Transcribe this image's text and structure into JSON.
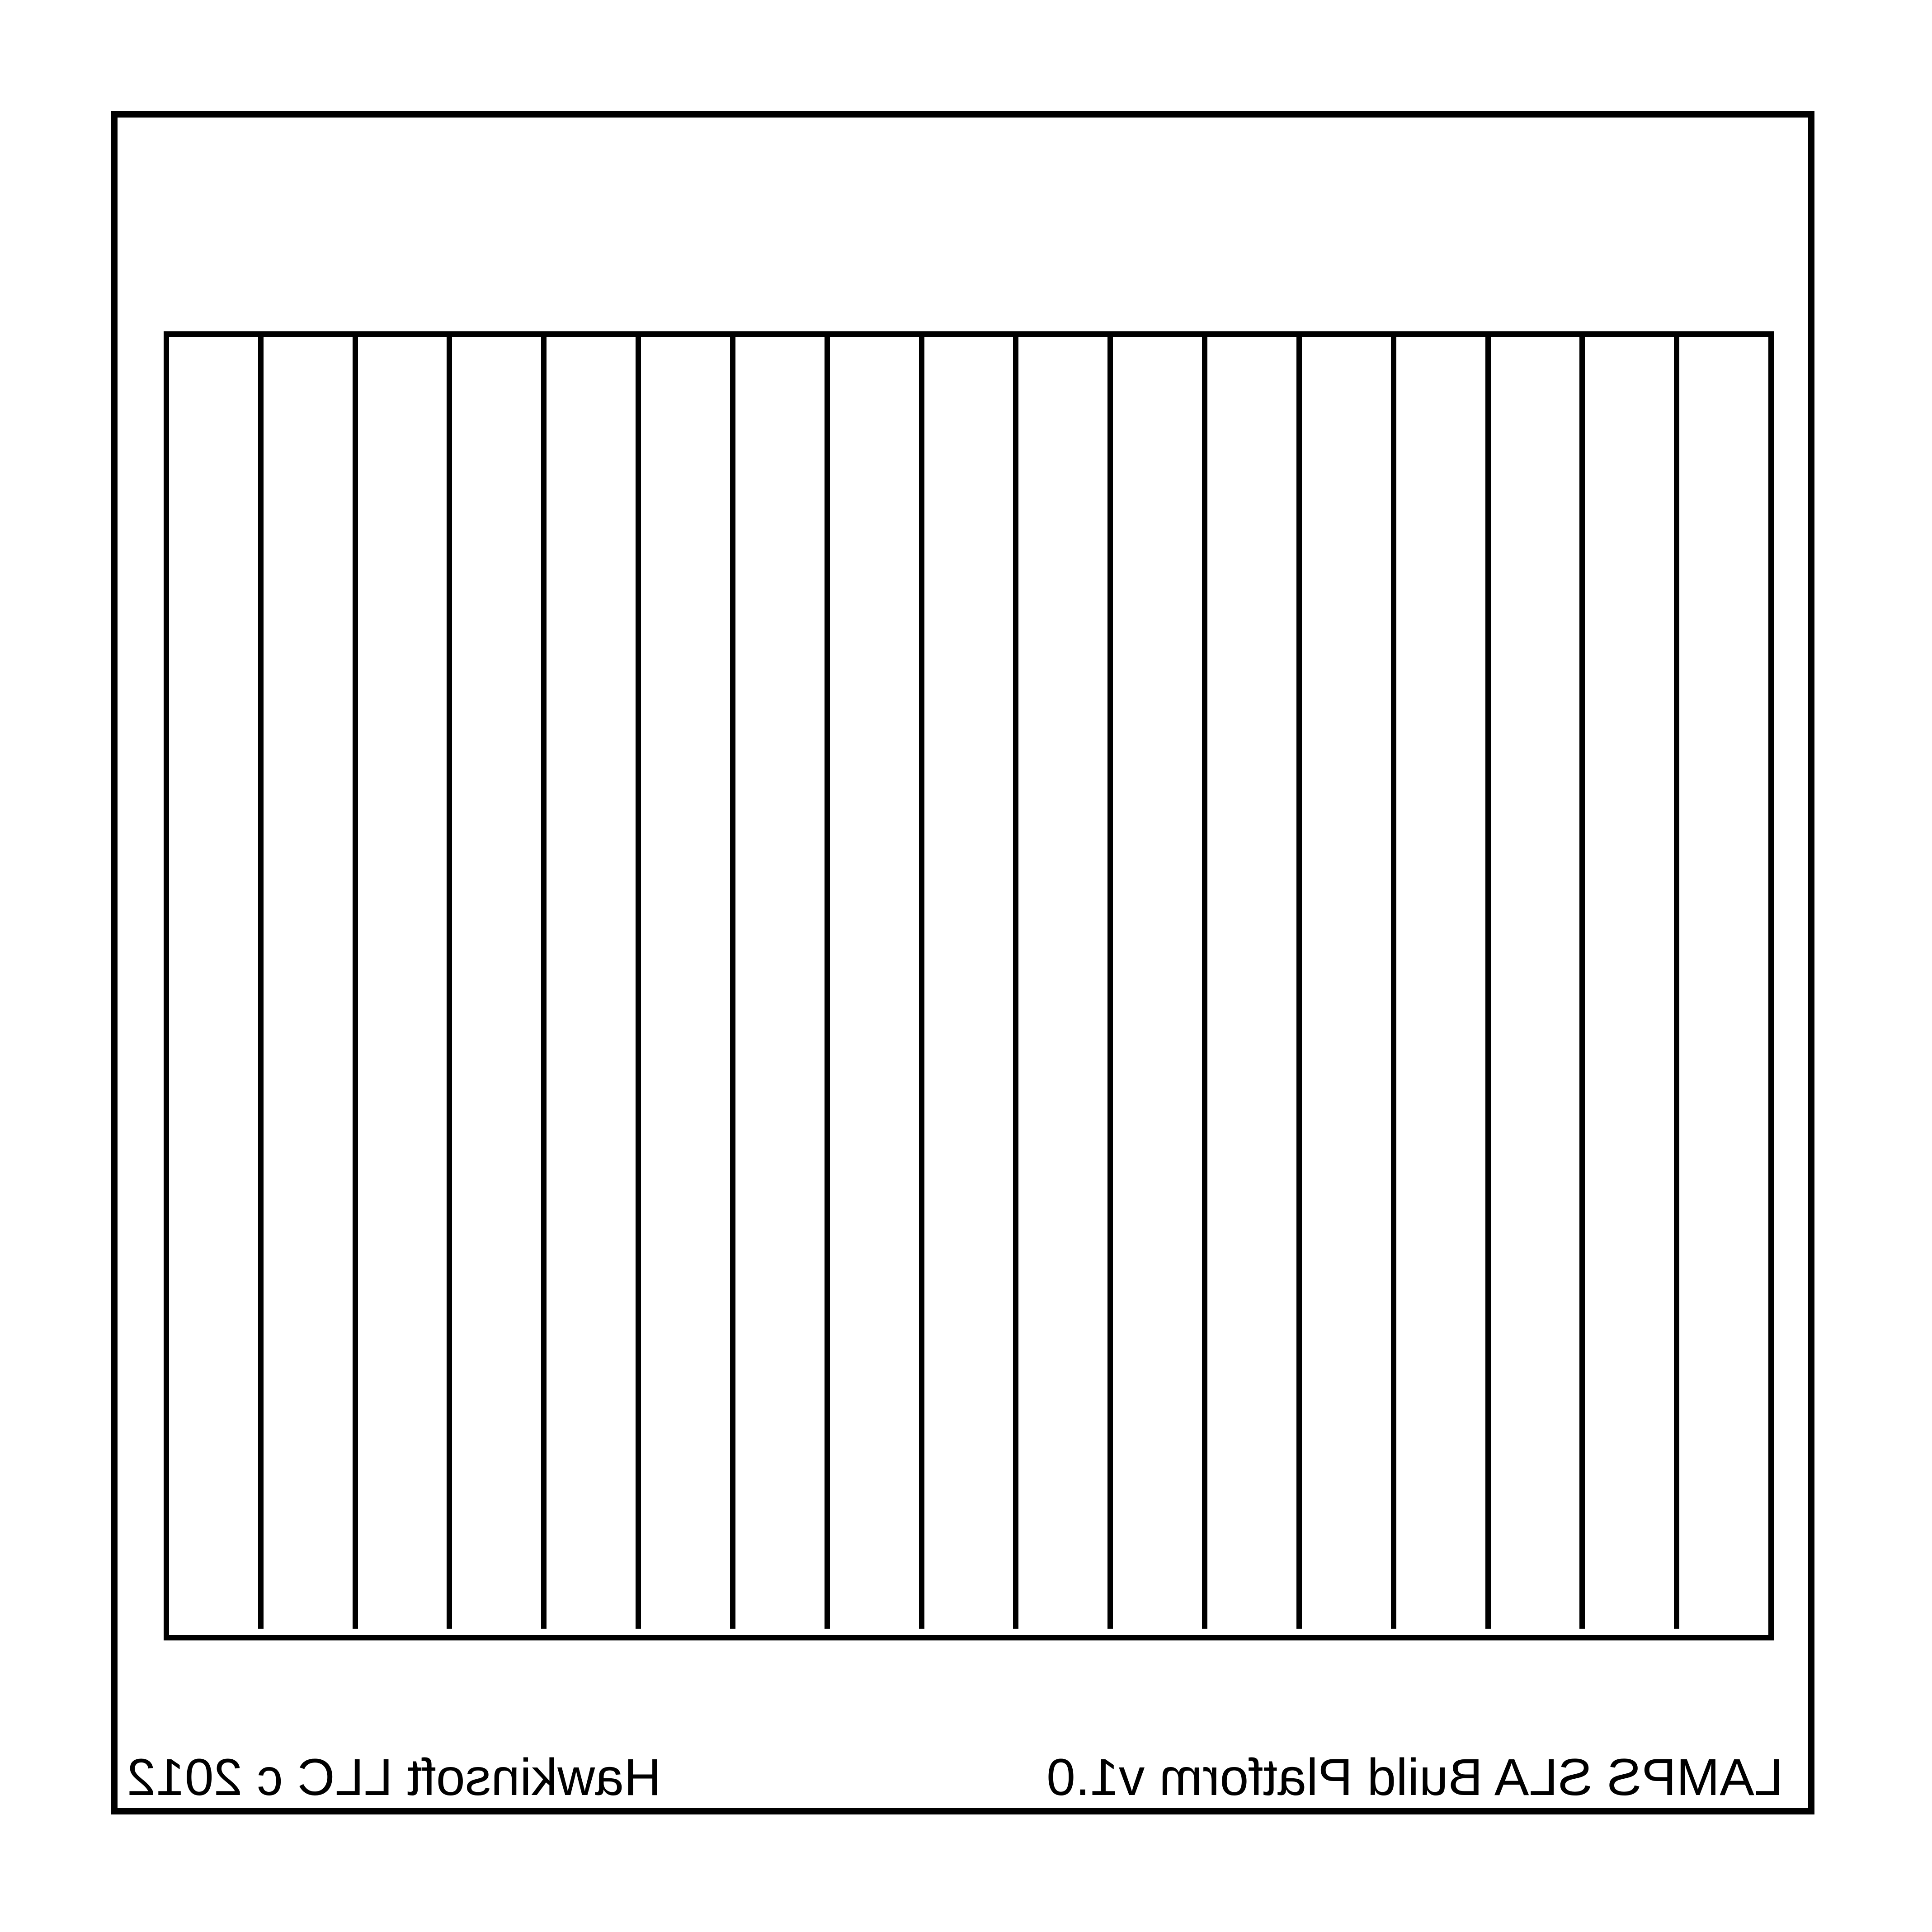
{
  "platform": {
    "mirrored": true,
    "groove_count": 16,
    "line_color": "#000000",
    "background": "#ffffff"
  },
  "labels": {
    "left": "Hawkinsoft LLC c 2012",
    "right": "LAMPS SLA Build Platform v1.0"
  }
}
